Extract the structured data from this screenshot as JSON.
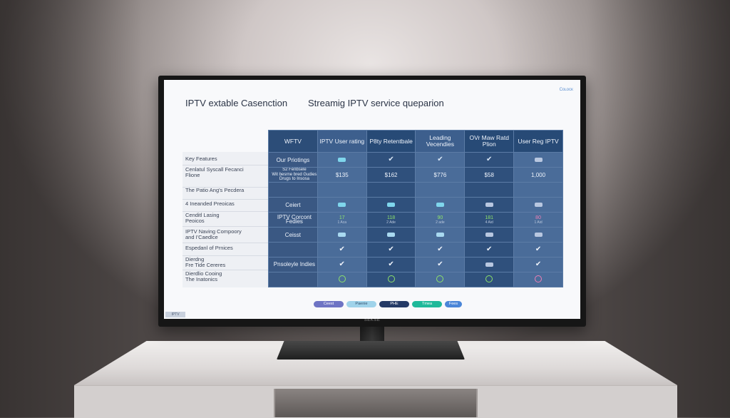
{
  "screen": {
    "logo": "Cᴏʟᴏᴄᴋ",
    "title_left": "IPTV extable Casenction",
    "title_right": "Streamig IPTV service queparion",
    "corner_tag": "IPTV",
    "brand": "SEKSE"
  },
  "table": {
    "headers": [
      "WFTV",
      "IPTV User rating",
      "P8ty Retentbale",
      "Leading Vecendies",
      "OVr Maw Ratd Plion",
      "User Reg IPTV"
    ],
    "side_labels": [
      "Key Features",
      "Cenlatul Syscall Fecanci\nFlione",
      "The Patio Ang's Pecdera",
      "4 Ineanded Preoicas",
      "Cenditl Lasing\nPeoicos",
      "IPTV Naving Compoory\nand I'Caedlce",
      "Espedanl of Prnices",
      "Dierdng\nFre Tide Cereres",
      "Dierdlio Cooing\nThe Inatonics"
    ],
    "col0_cells": [
      "Our Priotings",
      "S2 Fenbsele\nWit besrne bred Gudies\nDrugs to Insosa",
      "",
      "Ceiert",
      "IPTV Corcont\nFedies",
      "Ceisst",
      "",
      "Pnsoleyle Indies",
      ""
    ],
    "prices": [
      "$135",
      "$162",
      "$776",
      "$58",
      "1,000"
    ],
    "ratings": [
      {
        "value": "17",
        "sub": "1 Aca"
      },
      {
        "value": "118",
        "sub": "2 Ade"
      },
      {
        "value": "90",
        "sub": "2 ade"
      },
      {
        "value": "181",
        "sub": "4 Aid"
      },
      {
        "value": "80",
        "sub": "1 Aid"
      }
    ]
  },
  "pills": [
    "Ceest",
    "Paenie",
    "PHE",
    "Tmea",
    "Fees"
  ],
  "colors": {
    "accent_cyan": "#7fd6ec",
    "green": "#8ee36a",
    "pink": "#f07fb6",
    "pill_purple": "#6e74c4",
    "pill_light": "#9fd3ea",
    "pill_navy": "#243a66",
    "pill_teal": "#1fb99a",
    "pill_blue": "#4a86d8"
  }
}
